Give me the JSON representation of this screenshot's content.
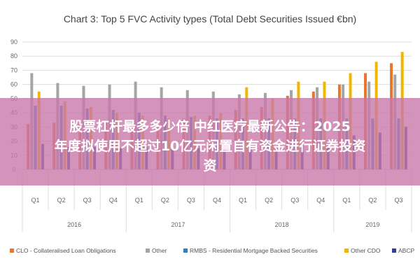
{
  "overlay": {
    "line1": "股票杠杆最多多少倍 中红医疗最新公告：2025",
    "line2": "年度拟使用不超过10亿元闲置自有资金进行证券投资",
    "line3": "资"
  },
  "chart_data": {
    "type": "bar",
    "title": "Chart 3: Top 5 FVC Activity types (Total Debt Securities Issued €bn)",
    "xlabel": "",
    "ylabel": "",
    "ylim": [
      0,
      90
    ],
    "yticks": [
      0,
      10,
      20,
      30,
      40,
      50,
      60,
      70,
      80,
      90
    ],
    "grid": true,
    "legend_position": "bottom",
    "categories": [
      "Q1",
      "Q2",
      "Q3",
      "Q4",
      "Q1",
      "Q2",
      "Q3",
      "Q4",
      "Q1",
      "Q2",
      "Q3",
      "Q4",
      "Q1",
      "Q2",
      "Q3"
    ],
    "years": [
      {
        "label": "2016",
        "span": 4
      },
      {
        "label": "2017",
        "span": 4
      },
      {
        "label": "2018",
        "span": 4
      },
      {
        "label": "2019",
        "span": 3
      }
    ],
    "series": [
      {
        "name": "CLO - Collateralised Loan Obligations",
        "color": "#E8762C",
        "values": [
          32,
          33,
          33,
          34,
          34,
          35,
          36,
          38,
          42,
          44,
          52,
          55,
          60,
          68,
          75
        ]
      },
      {
        "name": "Other",
        "color": "#A5A5A5",
        "values": [
          68,
          61,
          59,
          60,
          62,
          58,
          56,
          55,
          53,
          54,
          56,
          58,
          60,
          62,
          67
        ]
      },
      {
        "name": "RMBS - Residential Mortgage Backed Securities",
        "color": "#2F7DC4",
        "values": [
          45,
          45,
          43,
          42,
          40,
          38,
          37,
          36,
          36,
          36,
          36,
          36,
          36,
          36,
          36
        ]
      },
      {
        "name": "Other CDO",
        "color": "#F2B600",
        "values": [
          55,
          48,
          44,
          40,
          38,
          36,
          38,
          40,
          58,
          50,
          62,
          62,
          68,
          76,
          83
        ]
      },
      {
        "name": "ABCP",
        "color": "#2E3F8F",
        "values": [
          18,
          16,
          16,
          15,
          16,
          15,
          15,
          15,
          16,
          16,
          18,
          20,
          24,
          26,
          30
        ]
      }
    ]
  }
}
